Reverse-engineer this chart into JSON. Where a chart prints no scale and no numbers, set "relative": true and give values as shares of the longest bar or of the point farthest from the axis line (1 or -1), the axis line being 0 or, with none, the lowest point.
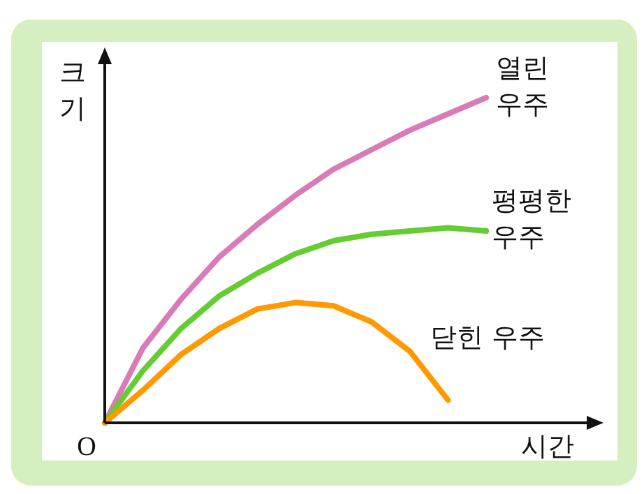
{
  "chart_data": {
    "type": "line",
    "relative": true,
    "xlabel": "시간",
    "ylabel": "크기",
    "annotations": [
      "O"
    ],
    "line_style": "solid",
    "categories": [
      null,
      null,
      null,
      null,
      null,
      null,
      null,
      null,
      null,
      null,
      null
    ],
    "series": [
      {
        "name": "열린 우주",
        "color": "#d97bb6",
        "values": [
          0,
          0.23,
          0.38,
          0.51,
          0.61,
          0.7,
          0.78,
          0.84,
          0.9,
          0.95,
          1
        ]
      },
      {
        "name": "평평한 우주",
        "color": "#66cc33",
        "values": [
          0,
          0.16,
          0.29,
          0.39,
          0.46,
          0.52,
          0.56,
          0.58,
          0.59,
          0.6,
          0.59
        ]
      },
      {
        "name": "닫힌 우주",
        "color": "#ff9900",
        "values": [
          0,
          0.1,
          0.21,
          0.29,
          0.35,
          0.37,
          0.36,
          0.31,
          0.22,
          0.07,
          null
        ]
      }
    ]
  }
}
